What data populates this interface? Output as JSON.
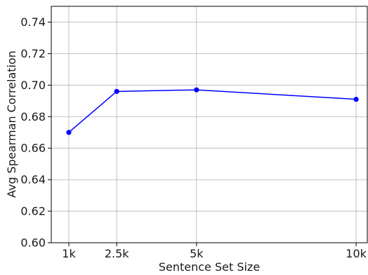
{
  "chart_data": {
    "type": "line",
    "title": "",
    "xlabel": "Sentence Set Size",
    "ylabel": "Avg Spearman Correlation",
    "x": [
      1000,
      2500,
      5000,
      10000
    ],
    "x_tick_values": [
      1000,
      2500,
      5000,
      10000
    ],
    "x_tick_labels": [
      "1k",
      "2.5k",
      "5k",
      "10k"
    ],
    "xlim": [
      450,
      10350
    ],
    "ylim": [
      0.6,
      0.75
    ],
    "y_ticks": [
      0.6,
      0.62,
      0.64,
      0.66,
      0.68,
      0.7,
      0.72,
      0.74
    ],
    "y_tick_labels": [
      "0.60",
      "0.62",
      "0.64",
      "0.66",
      "0.68",
      "0.70",
      "0.72",
      "0.74"
    ],
    "grid": true,
    "legend": "none",
    "series": [
      {
        "values": [
          0.67,
          0.696,
          0.697,
          0.691
        ],
        "color": "#0000ff",
        "marker": "circle"
      }
    ]
  }
}
